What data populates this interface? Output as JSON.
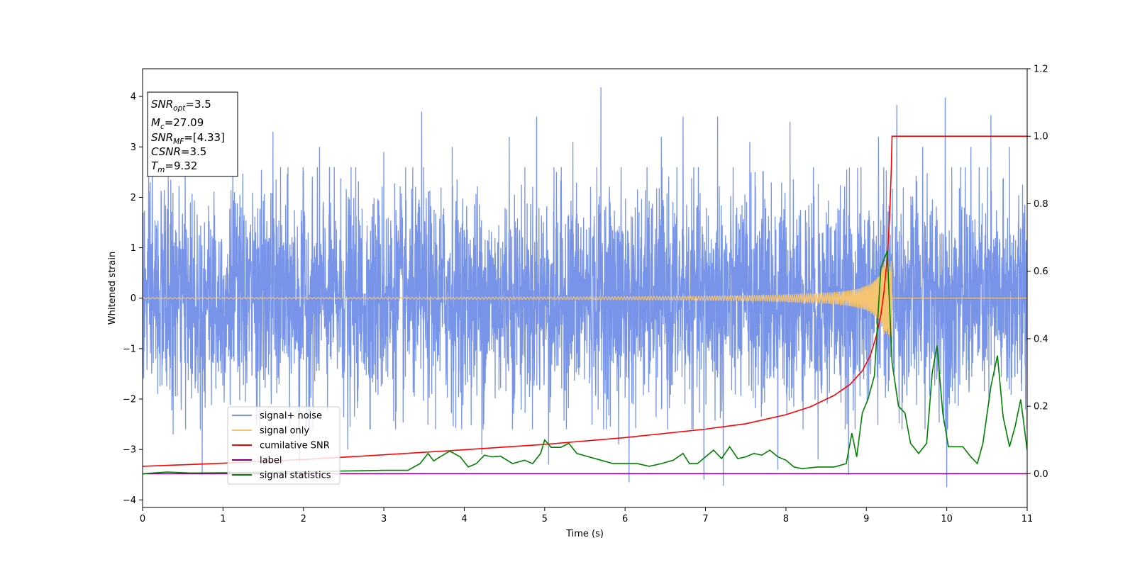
{
  "chart_data": {
    "type": "line",
    "xlabel": "Time (s)",
    "ylabel": "Whitened strain",
    "xlim": [
      0,
      11
    ],
    "ylim_left": [
      -4.15,
      4.55
    ],
    "ylim_right": [
      -0.1,
      1.2
    ],
    "x_ticks": [
      0,
      1,
      2,
      3,
      4,
      5,
      6,
      7,
      8,
      9,
      10,
      11
    ],
    "y_left_ticks": [
      4,
      3,
      2,
      1,
      0,
      -1,
      -2,
      -3,
      -4
    ],
    "y_left_tick_labels": [
      "4",
      "3",
      "2",
      "1",
      "0",
      "−1",
      "−2",
      "−3",
      "−4"
    ],
    "y_right_ticks": [
      1.2,
      1.0,
      0.8,
      0.6,
      0.4,
      0.2,
      0.0
    ],
    "y_right_tick_labels": [
      "1.2",
      "1.0",
      "0.8",
      "0.6",
      "0.4",
      "0.2",
      "0.0"
    ],
    "legend_position": "lower-left",
    "info_box": {
      "snr_opt_label": "SNR",
      "snr_opt_sub": "opt",
      "snr_opt_value": "=3.5",
      "mc_label": "M",
      "mc_sub": "c",
      "mc_value": "=27.09",
      "snr_mf_label": "SNR",
      "snr_mf_sub": "MF",
      "snr_mf_value": "=[4.33]",
      "csnr_label": "CSNR",
      "csnr_value": "=3.5",
      "tm_label": "T",
      "tm_sub": "m",
      "tm_value": "=9.32"
    },
    "series": [
      {
        "name": "signal+ noise",
        "color": "#7894e8",
        "axis": "left",
        "noise_envelope": [
          -2.0,
          2.0
        ],
        "x_range": [
          0,
          11
        ],
        "peak_spikes": [
          {
            "x": 0.12,
            "y": 2.8
          },
          {
            "x": 0.38,
            "y": -2.7
          },
          {
            "x": 0.74,
            "y": -3.5
          },
          {
            "x": 1.12,
            "y": 2.5
          },
          {
            "x": 1.62,
            "y": 3.3
          },
          {
            "x": 1.95,
            "y": -3.3
          },
          {
            "x": 2.2,
            "y": 3.0
          },
          {
            "x": 2.55,
            "y": -3.0
          },
          {
            "x": 3.0,
            "y": 2.9
          },
          {
            "x": 3.47,
            "y": 3.7
          },
          {
            "x": 3.85,
            "y": 3.0
          },
          {
            "x": 4.22,
            "y": -3.1
          },
          {
            "x": 4.56,
            "y": 3.2
          },
          {
            "x": 4.9,
            "y": 3.6
          },
          {
            "x": 5.05,
            "y": -3.3
          },
          {
            "x": 5.35,
            "y": 3.1
          },
          {
            "x": 5.7,
            "y": 4.18
          },
          {
            "x": 5.92,
            "y": -2.9
          },
          {
            "x": 6.05,
            "y": -3.65
          },
          {
            "x": 6.45,
            "y": 3.2
          },
          {
            "x": 6.72,
            "y": 3.6
          },
          {
            "x": 6.98,
            "y": -3.6
          },
          {
            "x": 7.15,
            "y": 3.6
          },
          {
            "x": 7.22,
            "y": -3.72
          },
          {
            "x": 7.55,
            "y": 3.1
          },
          {
            "x": 7.9,
            "y": -3.4
          },
          {
            "x": 8.05,
            "y": 3.5
          },
          {
            "x": 8.4,
            "y": -3.2
          },
          {
            "x": 8.78,
            "y": -3.5
          },
          {
            "x": 9.15,
            "y": 3.2
          },
          {
            "x": 9.38,
            "y": 3.83
          },
          {
            "x": 9.7,
            "y": 3.0
          },
          {
            "x": 9.98,
            "y": 3.98
          },
          {
            "x": 10.0,
            "y": -3.75
          },
          {
            "x": 10.3,
            "y": 3.0
          },
          {
            "x": 10.55,
            "y": 3.63
          },
          {
            "x": 10.78,
            "y": 3.0
          }
        ]
      },
      {
        "name": "signal only",
        "color": "#f5c470",
        "axis": "left",
        "chirp_merger_time": 9.32,
        "chirp_peak_amplitude": 0.75
      },
      {
        "name": "cumilative SNR",
        "color": "#ff0000",
        "axis": "right",
        "x": [
          0,
          1,
          2,
          3,
          4,
          5,
          6,
          7,
          7.5,
          8,
          8.3,
          8.6,
          8.8,
          8.95,
          9.05,
          9.12,
          9.18,
          9.22,
          9.26,
          9.29,
          9.31,
          9.32,
          11
        ],
        "y": [
          0.022,
          0.031,
          0.042,
          0.056,
          0.071,
          0.087,
          0.107,
          0.132,
          0.148,
          0.175,
          0.198,
          0.232,
          0.265,
          0.305,
          0.35,
          0.405,
          0.47,
          0.54,
          0.64,
          0.76,
          0.9,
          1.0,
          1.0
        ]
      },
      {
        "name": "label",
        "color": "#800080",
        "axis": "right",
        "x": [
          0,
          11
        ],
        "y": [
          0.0,
          0.0
        ]
      },
      {
        "name": "signal statistics",
        "color": "#008000",
        "axis": "right",
        "x": [
          0,
          0.3,
          0.6,
          1.0,
          1.5,
          2.0,
          2.5,
          3.0,
          3.3,
          3.45,
          3.55,
          3.62,
          3.7,
          3.82,
          3.95,
          4.05,
          4.15,
          4.25,
          4.35,
          4.45,
          4.6,
          4.75,
          4.85,
          4.95,
          5.0,
          5.08,
          5.2,
          5.3,
          5.4,
          5.55,
          5.7,
          5.85,
          6.0,
          6.15,
          6.3,
          6.45,
          6.6,
          6.72,
          6.8,
          6.9,
          7.0,
          7.1,
          7.2,
          7.3,
          7.4,
          7.5,
          7.6,
          7.7,
          7.8,
          7.9,
          8.0,
          8.1,
          8.2,
          8.4,
          8.6,
          8.75,
          8.82,
          8.88,
          8.95,
          9.02,
          9.1,
          9.18,
          9.26,
          9.32,
          9.4,
          9.48,
          9.55,
          9.65,
          9.75,
          9.82,
          9.88,
          9.95,
          10.02,
          10.1,
          10.2,
          10.3,
          10.38,
          10.45,
          10.55,
          10.63,
          10.7,
          10.78,
          10.85,
          10.92,
          11.0
        ],
        "y": [
          0.0,
          0.005,
          0.002,
          0.003,
          0.004,
          0.006,
          0.008,
          0.01,
          0.01,
          0.03,
          0.06,
          0.038,
          0.05,
          0.067,
          0.05,
          0.02,
          0.03,
          0.055,
          0.05,
          0.052,
          0.03,
          0.04,
          0.03,
          0.06,
          0.1,
          0.078,
          0.078,
          0.09,
          0.06,
          0.05,
          0.04,
          0.03,
          0.03,
          0.03,
          0.022,
          0.03,
          0.04,
          0.06,
          0.03,
          0.03,
          0.05,
          0.07,
          0.045,
          0.08,
          0.045,
          0.05,
          0.06,
          0.055,
          0.07,
          0.05,
          0.04,
          0.02,
          0.015,
          0.02,
          0.02,
          0.03,
          0.12,
          0.05,
          0.18,
          0.22,
          0.29,
          0.61,
          0.66,
          0.33,
          0.2,
          0.18,
          0.09,
          0.06,
          0.09,
          0.3,
          0.38,
          0.18,
          0.08,
          0.08,
          0.08,
          0.05,
          0.03,
          0.09,
          0.26,
          0.35,
          0.17,
          0.08,
          0.14,
          0.22,
          0.07
        ]
      }
    ]
  }
}
